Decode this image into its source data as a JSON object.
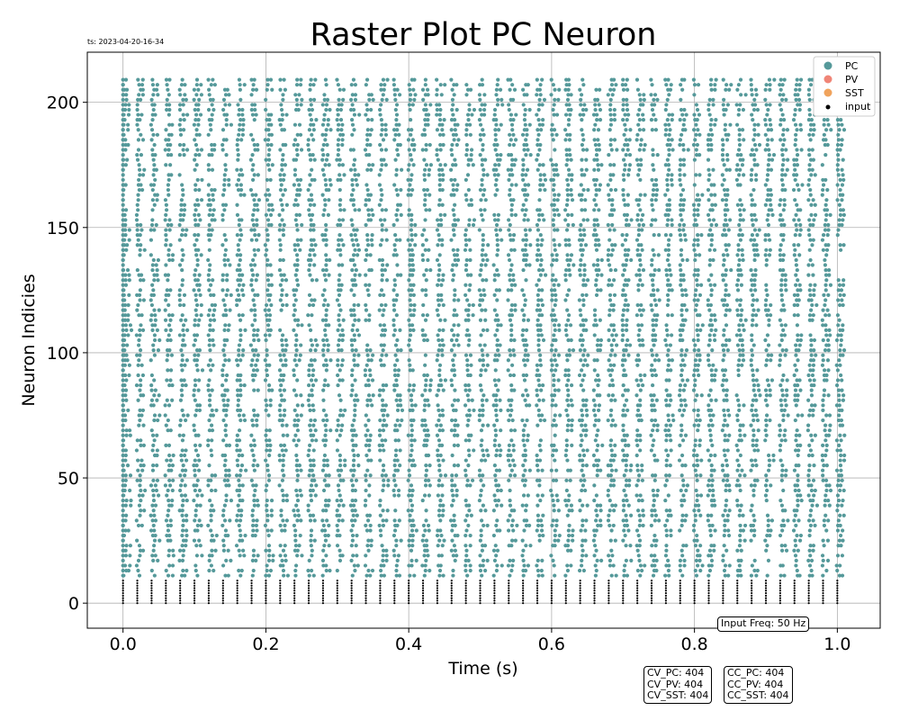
{
  "chart_data": {
    "type": "scatter",
    "title": "Raster Plot PC Neuron",
    "timestamp": "ts: 2023-04-20-16-34",
    "xlabel": "Time (s)",
    "ylabel": "Neuron Indicies",
    "xlim": [
      -0.05,
      1.06
    ],
    "ylim": [
      -10,
      220
    ],
    "xticks": [
      0.0,
      0.2,
      0.4,
      0.6,
      0.8,
      1.0
    ],
    "xtick_labels": [
      "0.0",
      "0.2",
      "0.4",
      "0.6",
      "0.8",
      "1.0"
    ],
    "yticks": [
      0,
      50,
      100,
      150,
      200
    ],
    "ytick_labels": [
      "0",
      "50",
      "100",
      "150",
      "200"
    ],
    "grid": true,
    "legend_position": "top-right",
    "series": [
      {
        "name": "PC",
        "color": "#55999a",
        "neuron_range": [
          11,
          210
        ],
        "time_range": [
          0.0,
          1.01
        ],
        "approx_firing_rate_hz": 50,
        "burst_period_s": 0.02,
        "marker": "dot"
      },
      {
        "name": "PV",
        "color": "#f08577"
      },
      {
        "name": "SST",
        "color": "#f0a35c"
      },
      {
        "name": "input",
        "color": "#000000",
        "neuron_range": [
          0,
          9
        ],
        "time_range": [
          0.0,
          1.0
        ],
        "spike_times_s": [
          0.0,
          0.02,
          0.04,
          0.06,
          0.08,
          0.1,
          0.12,
          0.14,
          0.16,
          0.18,
          0.2,
          0.22,
          0.24,
          0.26,
          0.28,
          0.3,
          0.32,
          0.34,
          0.36,
          0.38,
          0.4,
          0.42,
          0.44,
          0.46,
          0.48,
          0.5,
          0.52,
          0.54,
          0.56,
          0.58,
          0.6,
          0.62,
          0.64,
          0.66,
          0.68,
          0.7,
          0.72,
          0.74,
          0.76,
          0.78,
          0.8,
          0.82,
          0.84,
          0.86,
          0.88,
          0.9,
          0.92,
          0.94,
          0.96,
          0.98,
          1.0
        ],
        "marker": "dot"
      }
    ],
    "annotations": {
      "input_freq": "Input Freq: 50 Hz",
      "cv_lines": [
        "CV_PC: 404",
        "CV_PV: 404",
        "CV_SST: 404"
      ],
      "cc_lines": [
        "CC_PC: 404",
        "CC_PV: 404",
        "CC_SST: 404"
      ]
    }
  }
}
